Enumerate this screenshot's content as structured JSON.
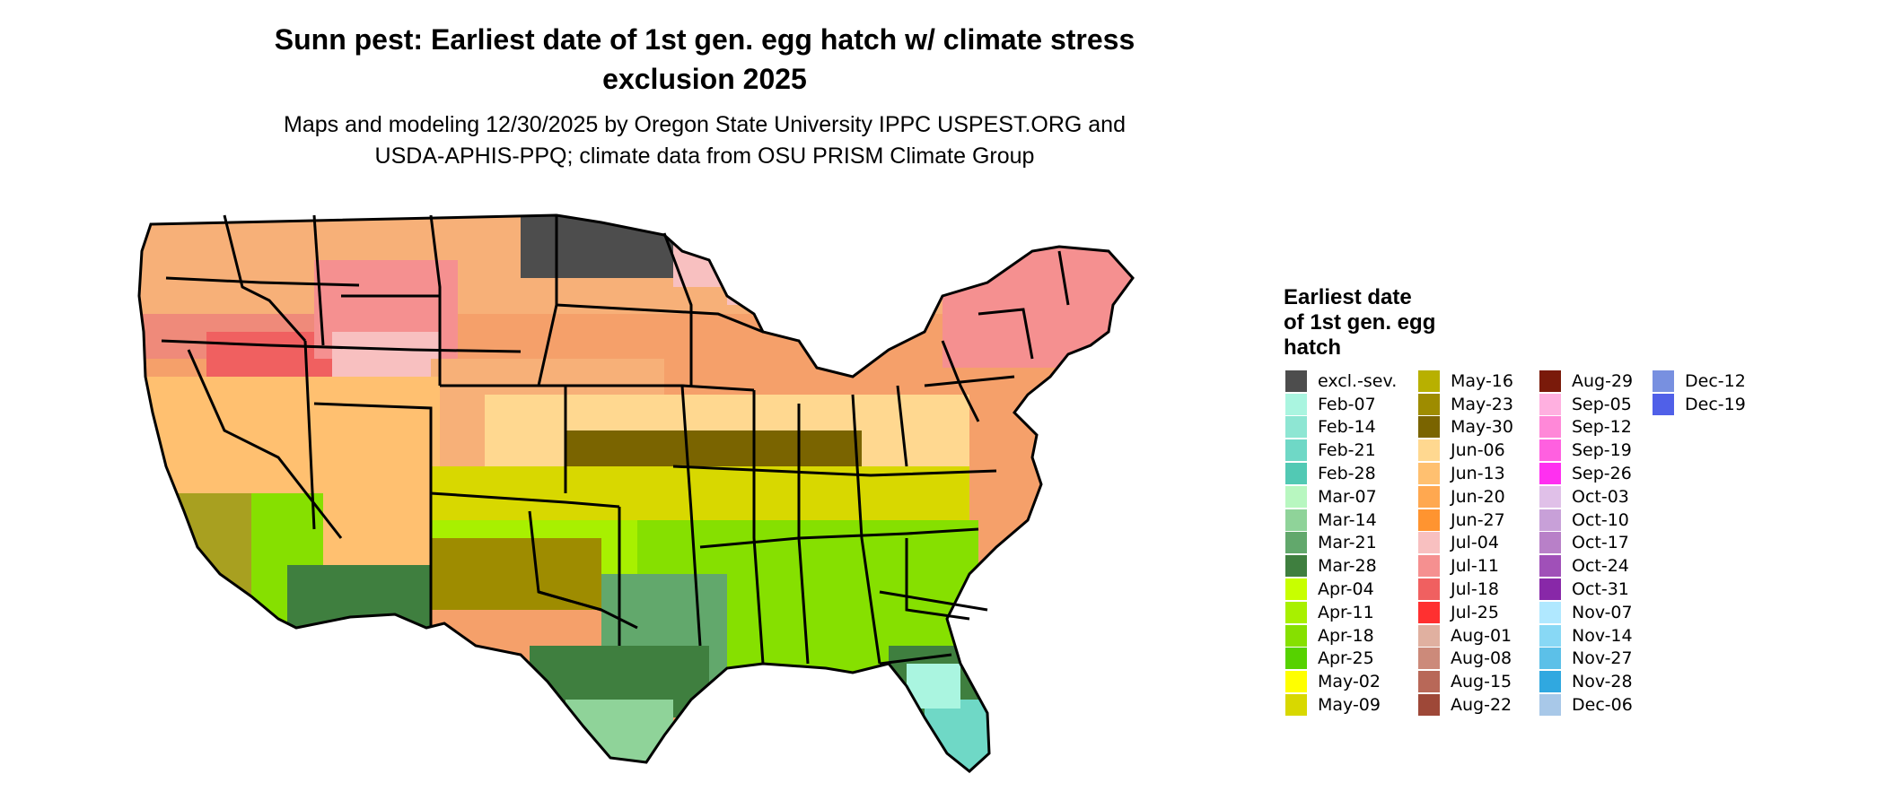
{
  "title_line1": "Sunn pest: Earliest date of 1st gen. egg hatch w/ climate stress",
  "title_line2": "exclusion 2025",
  "subtitle_line1": "Maps and modeling 12/30/2025 by Oregon State University IPPC USPEST.ORG and",
  "subtitle_line2": "USDA-APHIS-PPQ; climate data from OSU PRISM Climate Group",
  "legend": {
    "title_line1": "Earliest date",
    "title_line2": "of 1st gen. egg",
    "title_line3": "hatch",
    "columns": [
      [
        {
          "label": "excl.-sev.",
          "color": "#4d4d4d"
        },
        {
          "label": "Feb-07",
          "color": "#aaf5e0"
        },
        {
          "label": "Feb-14",
          "color": "#8ee6d3"
        },
        {
          "label": "Feb-21",
          "color": "#6fd8c6"
        },
        {
          "label": "Feb-28",
          "color": "#52c9b4"
        },
        {
          "label": "Mar-07",
          "color": "#b8f7c0"
        },
        {
          "label": "Mar-14",
          "color": "#8fd399"
        },
        {
          "label": "Mar-21",
          "color": "#62a86c"
        },
        {
          "label": "Mar-28",
          "color": "#3f7f3f"
        },
        {
          "label": "Apr-04",
          "color": "#c8ff00"
        },
        {
          "label": "Apr-11",
          "color": "#a8f000"
        },
        {
          "label": "Apr-18",
          "color": "#86e000"
        },
        {
          "label": "Apr-25",
          "color": "#56d200"
        },
        {
          "label": "May-02",
          "color": "#ffff00"
        },
        {
          "label": "May-09",
          "color": "#d8d800"
        }
      ],
      [
        {
          "label": "May-16",
          "color": "#b8b000"
        },
        {
          "label": "May-23",
          "color": "#9e8c00"
        },
        {
          "label": "May-30",
          "color": "#7a6400"
        },
        {
          "label": "Jun-06",
          "color": "#ffd890"
        },
        {
          "label": "Jun-13",
          "color": "#ffc070"
        },
        {
          "label": "Jun-20",
          "color": "#ffa850"
        },
        {
          "label": "Jun-27",
          "color": "#ff9430"
        },
        {
          "label": "Jul-04",
          "color": "#f8c0c0"
        },
        {
          "label": "Jul-11",
          "color": "#f59090"
        },
        {
          "label": "Jul-18",
          "color": "#f06060"
        },
        {
          "label": "Jul-25",
          "color": "#ff3030"
        },
        {
          "label": "Aug-01",
          "color": "#e0b0a0"
        },
        {
          "label": "Aug-08",
          "color": "#cc8a7a"
        },
        {
          "label": "Aug-15",
          "color": "#b86858"
        },
        {
          "label": "Aug-22",
          "color": "#9e4838"
        }
      ],
      [
        {
          "label": "Aug-29",
          "color": "#7a1a0a"
        },
        {
          "label": "Sep-05",
          "color": "#ffb0e0"
        },
        {
          "label": "Sep-12",
          "color": "#ff88d8"
        },
        {
          "label": "Sep-19",
          "color": "#ff60e0"
        },
        {
          "label": "Sep-26",
          "color": "#ff30f0"
        },
        {
          "label": "Oct-03",
          "color": "#e0c0e8"
        },
        {
          "label": "Oct-10",
          "color": "#c8a0d8"
        },
        {
          "label": "Oct-17",
          "color": "#b880c8"
        },
        {
          "label": "Oct-24",
          "color": "#a050b8"
        },
        {
          "label": "Oct-31",
          "color": "#8828a8"
        },
        {
          "label": "Nov-07",
          "color": "#b0e8ff"
        },
        {
          "label": "Nov-14",
          "color": "#88d8f5"
        },
        {
          "label": "Nov-27",
          "color": "#5cc0e8"
        },
        {
          "label": "Nov-28",
          "color": "#30a8e0"
        },
        {
          "label": "Dec-06",
          "color": "#a8c8e8"
        }
      ],
      [
        {
          "label": "Dec-12",
          "color": "#7890e0"
        },
        {
          "label": "Dec-19",
          "color": "#5060e8"
        }
      ]
    ]
  }
}
